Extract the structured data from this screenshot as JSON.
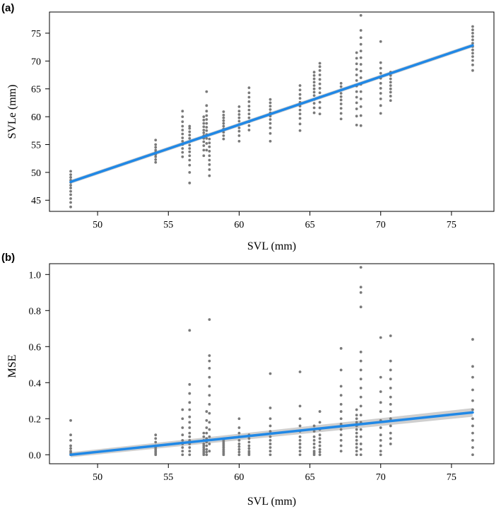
{
  "chart_data": [
    {
      "type": "scatter",
      "panel_label": "(a)",
      "xlabel": "SVL (mm)",
      "ylabel": "SVLe (mm)",
      "xlim": [
        46.6,
        78.0
      ],
      "ylim": [
        43.0,
        78.8
      ],
      "xticks": [
        50,
        55,
        60,
        65,
        70,
        75
      ],
      "yticks": [
        45,
        50,
        55,
        60,
        65,
        70,
        75
      ],
      "xtick_labels": [
        "50",
        "55",
        "60",
        "65",
        "70",
        "75"
      ],
      "ytick_labels": [
        "45",
        "50",
        "55",
        "60",
        "65",
        "70",
        "75"
      ],
      "fit": {
        "x": [
          48.1,
          76.5
        ],
        "y": [
          48.3,
          72.8
        ],
        "se": 0.35
      },
      "points": [
        {
          "x": 48.1,
          "y": [
            43.8,
            44.6,
            45.3,
            46.0,
            46.6,
            47.2,
            47.7,
            48.2,
            48.6,
            49.1,
            49.6,
            50.2
          ]
        },
        {
          "x": 54.1,
          "y": [
            51.8,
            52.3,
            52.8,
            53.2,
            53.6,
            54.0,
            54.5,
            55.0,
            55.8
          ]
        },
        {
          "x": 56.0,
          "y": [
            52.8,
            53.6,
            54.3,
            55.0,
            55.6,
            56.2,
            56.9,
            57.6,
            58.3,
            59.1,
            60.0,
            61.0
          ]
        },
        {
          "x": 56.5,
          "y": [
            48.1,
            50.0,
            51.3,
            52.2,
            53.0,
            53.7,
            54.3,
            54.9,
            55.5,
            56.1,
            56.7,
            57.3,
            57.9,
            58.3
          ]
        },
        {
          "x": 57.5,
          "y": [
            53.0,
            54.0,
            54.8,
            55.5,
            56.1,
            56.6,
            57.1,
            57.6,
            58.2,
            58.8,
            59.4,
            60.0
          ]
        },
        {
          "x": 57.7,
          "y": [
            54.0,
            55.2,
            56.1,
            56.8,
            57.5,
            58.1,
            58.8,
            59.5,
            60.2,
            61.0,
            62.0,
            64.5
          ]
        },
        {
          "x": 57.9,
          "y": [
            49.4,
            50.5,
            51.4,
            52.2,
            53.0,
            53.8,
            54.6,
            55.3,
            56.0
          ]
        },
        {
          "x": 58.9,
          "y": [
            56.0,
            56.6,
            57.2,
            57.8,
            58.3,
            58.8,
            59.3,
            59.8,
            60.3,
            60.9
          ]
        },
        {
          "x": 60.0,
          "y": [
            55.6,
            56.6,
            57.4,
            58.0,
            58.6,
            59.2,
            59.8,
            60.4,
            61.0,
            61.8
          ]
        },
        {
          "x": 60.7,
          "y": [
            57.6,
            58.4,
            59.1,
            59.8,
            60.5,
            61.2,
            61.9,
            62.7,
            63.5,
            64.3,
            65.2
          ]
        },
        {
          "x": 62.2,
          "y": [
            55.6,
            57.0,
            58.0,
            58.8,
            59.5,
            60.1,
            60.7,
            61.3,
            61.9,
            62.5,
            63.1
          ]
        },
        {
          "x": 64.3,
          "y": [
            57.5,
            58.7,
            59.7,
            60.5,
            61.2,
            61.9,
            62.6,
            63.3,
            64.0,
            64.8,
            65.6
          ]
        },
        {
          "x": 65.3,
          "y": [
            60.7,
            61.6,
            62.4,
            63.1,
            63.8,
            64.4,
            65.0,
            65.6,
            66.2,
            66.8,
            67.4,
            68.0
          ]
        },
        {
          "x": 65.7,
          "y": [
            60.5,
            61.6,
            62.6,
            63.5,
            64.3,
            65.1,
            65.9,
            66.7,
            67.5,
            68.3,
            69.0,
            69.6
          ]
        },
        {
          "x": 67.2,
          "y": [
            59.6,
            60.6,
            61.5,
            62.3,
            63.0,
            63.6,
            64.2,
            64.8,
            65.4,
            66.0
          ]
        },
        {
          "x": 68.3,
          "y": [
            58.5,
            60.1,
            61.4,
            62.5,
            63.5,
            64.5,
            65.5,
            66.5,
            67.5,
            68.5,
            69.5,
            70.5,
            71.5
          ]
        },
        {
          "x": 68.6,
          "y": [
            58.4,
            60.2,
            61.8,
            63.2,
            64.5,
            65.8,
            67.0,
            68.2,
            69.4,
            70.6,
            71.8,
            73.0,
            74.2,
            75.5,
            78.2
          ]
        },
        {
          "x": 70.0,
          "y": [
            60.6,
            62.0,
            63.2,
            64.2,
            65.1,
            66.0,
            66.9,
            67.8,
            68.7,
            69.7,
            73.5
          ]
        },
        {
          "x": 70.7,
          "y": [
            62.9,
            63.7,
            64.4,
            65.0,
            65.6,
            66.2,
            66.8,
            67.4,
            68.0
          ]
        },
        {
          "x": 76.5,
          "y": [
            68.3,
            69.3,
            70.1,
            70.8,
            71.4,
            72.0,
            72.6,
            73.2,
            73.8,
            74.4,
            75.0,
            75.6,
            76.2
          ]
        }
      ]
    },
    {
      "type": "scatter",
      "panel_label": "(b)",
      "xlabel": "SVL (mm)",
      "ylabel": "MSE",
      "xlim": [
        46.6,
        78.0
      ],
      "ylim": [
        -0.05,
        1.06
      ],
      "xticks": [
        50,
        55,
        60,
        65,
        70,
        75
      ],
      "yticks": [
        0.0,
        0.2,
        0.4,
        0.6,
        0.8,
        1.0
      ],
      "xtick_labels": [
        "50",
        "55",
        "60",
        "65",
        "70",
        "75"
      ],
      "ytick_labels": [
        "0.0",
        "0.2",
        "0.4",
        "0.6",
        "0.8",
        "1.0"
      ],
      "fit": {
        "x": [
          48.1,
          76.5
        ],
        "y": [
          0.0,
          0.235
        ],
        "se_low": 0.014,
        "se_high": 0.024
      },
      "points": [
        {
          "x": 48.1,
          "y": [
            0.0,
            0.01,
            0.02,
            0.035,
            0.05,
            0.08,
            0.11,
            0.19
          ]
        },
        {
          "x": 54.1,
          "y": [
            0.0,
            0.01,
            0.02,
            0.03,
            0.04,
            0.05,
            0.07,
            0.09,
            0.11
          ]
        },
        {
          "x": 56.0,
          "y": [
            0.0,
            0.02,
            0.04,
            0.06,
            0.08,
            0.11,
            0.15,
            0.2,
            0.25
          ]
        },
        {
          "x": 56.5,
          "y": [
            0.0,
            0.02,
            0.04,
            0.06,
            0.08,
            0.1,
            0.12,
            0.15,
            0.18,
            0.21,
            0.25,
            0.29,
            0.34,
            0.39,
            0.69
          ]
        },
        {
          "x": 57.5,
          "y": [
            0.0,
            0.01,
            0.02,
            0.03,
            0.04,
            0.05,
            0.06,
            0.08,
            0.1,
            0.12
          ]
        },
        {
          "x": 57.7,
          "y": [
            0.0,
            0.015,
            0.03,
            0.05,
            0.07,
            0.09,
            0.12,
            0.15,
            0.19,
            0.24
          ]
        },
        {
          "x": 57.9,
          "y": [
            0.02,
            0.06,
            0.1,
            0.14,
            0.18,
            0.23,
            0.28,
            0.33,
            0.38,
            0.43,
            0.48,
            0.52,
            0.55,
            0.75
          ]
        },
        {
          "x": 58.9,
          "y": [
            0.0,
            0.01,
            0.02,
            0.03,
            0.04,
            0.05,
            0.06,
            0.07,
            0.08
          ]
        },
        {
          "x": 60.0,
          "y": [
            0.0,
            0.015,
            0.03,
            0.045,
            0.06,
            0.08,
            0.1,
            0.12,
            0.15,
            0.2
          ]
        },
        {
          "x": 60.7,
          "y": [
            0.0,
            0.01,
            0.02,
            0.035,
            0.05,
            0.07,
            0.09,
            0.11
          ]
        },
        {
          "x": 62.2,
          "y": [
            0.0,
            0.02,
            0.04,
            0.06,
            0.08,
            0.1,
            0.13,
            0.16,
            0.2,
            0.26,
            0.45
          ]
        },
        {
          "x": 64.3,
          "y": [
            0.0,
            0.02,
            0.04,
            0.06,
            0.08,
            0.1,
            0.13,
            0.16,
            0.2,
            0.27,
            0.46
          ]
        },
        {
          "x": 65.3,
          "y": [
            0.0,
            0.01,
            0.02,
            0.04,
            0.06,
            0.08,
            0.1,
            0.13,
            0.16
          ]
        },
        {
          "x": 65.7,
          "y": [
            0.0,
            0.015,
            0.03,
            0.05,
            0.07,
            0.09,
            0.11,
            0.14,
            0.18,
            0.24
          ]
        },
        {
          "x": 67.2,
          "y": [
            0.02,
            0.05,
            0.08,
            0.11,
            0.14,
            0.17,
            0.2,
            0.24,
            0.28,
            0.33,
            0.38,
            0.47,
            0.59
          ]
        },
        {
          "x": 68.3,
          "y": [
            0.0,
            0.02,
            0.04,
            0.06,
            0.08,
            0.1,
            0.12,
            0.14,
            0.16,
            0.18,
            0.2,
            0.22,
            0.25
          ]
        },
        {
          "x": 68.6,
          "y": [
            0.0,
            0.03,
            0.06,
            0.1,
            0.14,
            0.18,
            0.22,
            0.27,
            0.32,
            0.37,
            0.42,
            0.47,
            0.52,
            0.57,
            0.82,
            0.9,
            0.93,
            1.04
          ]
        },
        {
          "x": 70.0,
          "y": [
            0.0,
            0.02,
            0.05,
            0.08,
            0.11,
            0.15,
            0.19,
            0.24,
            0.29,
            0.35,
            0.43,
            0.65
          ]
        },
        {
          "x": 70.7,
          "y": [
            0.06,
            0.09,
            0.12,
            0.16,
            0.2,
            0.24,
            0.28,
            0.32,
            0.37,
            0.42,
            0.47,
            0.52,
            0.66
          ]
        },
        {
          "x": 76.5,
          "y": [
            0.0,
            0.04,
            0.08,
            0.12,
            0.16,
            0.2,
            0.25,
            0.3,
            0.36,
            0.43,
            0.49,
            0.64
          ]
        }
      ]
    }
  ]
}
